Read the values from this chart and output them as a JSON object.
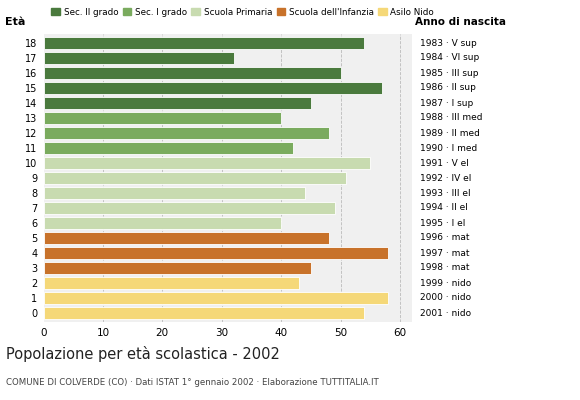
{
  "ages": [
    18,
    17,
    16,
    15,
    14,
    13,
    12,
    11,
    10,
    9,
    8,
    7,
    6,
    5,
    4,
    3,
    2,
    1,
    0
  ],
  "values": [
    54,
    32,
    50,
    57,
    45,
    40,
    48,
    42,
    55,
    51,
    44,
    49,
    40,
    48,
    58,
    45,
    43,
    58,
    54
  ],
  "right_labels": [
    "1983 · V sup",
    "1984 · VI sup",
    "1985 · III sup",
    "1986 · II sup",
    "1987 · I sup",
    "1988 · III med",
    "1989 · II med",
    "1990 · I med",
    "1991 · V el",
    "1992 · IV el",
    "1993 · III el",
    "1994 · II el",
    "1995 · I el",
    "1996 · mat",
    "1997 · mat",
    "1998 · mat",
    "1999 · nido",
    "2000 · nido",
    "2001 · nido"
  ],
  "colors": [
    "#4a7a3d",
    "#4a7a3d",
    "#4a7a3d",
    "#4a7a3d",
    "#4a7a3d",
    "#7aab5e",
    "#7aab5e",
    "#7aab5e",
    "#c8dbb0",
    "#c8dbb0",
    "#c8dbb0",
    "#c8dbb0",
    "#c8dbb0",
    "#c8722a",
    "#c8722a",
    "#c8722a",
    "#f5d878",
    "#f5d878",
    "#f5d878"
  ],
  "legend_labels": [
    "Sec. II grado",
    "Sec. I grado",
    "Scuola Primaria",
    "Scuola dell'Infanzia",
    "Asilo Nido"
  ],
  "legend_colors": [
    "#4a7a3d",
    "#7aab5e",
    "#c8dbb0",
    "#c8722a",
    "#f5d878"
  ],
  "title": "Popolazione per età scolastica - 2002",
  "subtitle": "COMUNE DI COLVERDE (CO) · Dati ISTAT 1° gennaio 2002 · Elaborazione TUTTITALIA.IT",
  "xlabel_left": "Età",
  "xlabel_right": "Anno di nascita",
  "xlim": [
    0,
    62
  ],
  "xticks": [
    0,
    10,
    20,
    30,
    40,
    50,
    60
  ],
  "background_color": "#ffffff",
  "bar_background": "#f0f0f0",
  "grid_color": "#bbbbbb"
}
